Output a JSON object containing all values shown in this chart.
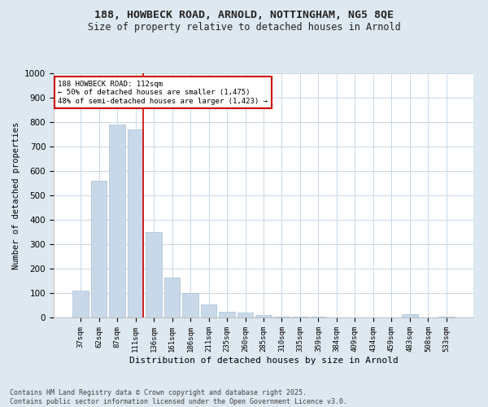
{
  "title1": "188, HOWBECK ROAD, ARNOLD, NOTTINGHAM, NG5 8QE",
  "title2": "Size of property relative to detached houses in Arnold",
  "xlabel": "Distribution of detached houses by size in Arnold",
  "ylabel": "Number of detached properties",
  "categories": [
    "37sqm",
    "62sqm",
    "87sqm",
    "111sqm",
    "136sqm",
    "161sqm",
    "186sqm",
    "211sqm",
    "235sqm",
    "260sqm",
    "285sqm",
    "310sqm",
    "335sqm",
    "359sqm",
    "384sqm",
    "409sqm",
    "434sqm",
    "459sqm",
    "483sqm",
    "508sqm",
    "533sqm"
  ],
  "values": [
    110,
    560,
    790,
    770,
    350,
    165,
    100,
    55,
    25,
    20,
    10,
    5,
    5,
    2,
    0,
    0,
    0,
    0,
    15,
    0,
    5
  ],
  "bar_color": "#c8d8e8",
  "bar_edge_color": "#a8c0d8",
  "vline_x_index": 3.42,
  "vline_color": "#cc0000",
  "annotation_text": "188 HOWBECK ROAD: 112sqm\n← 50% of detached houses are smaller (1,475)\n48% of semi-detached houses are larger (1,423) →",
  "annotation_box_color": "#ffffff",
  "annotation_box_edge": "#cc0000",
  "bg_color": "#dde8f0",
  "plot_bg_color": "#ffffff",
  "grid_color": "#c8d8e8",
  "footer": "Contains HM Land Registry data © Crown copyright and database right 2025.\nContains public sector information licensed under the Open Government Licence v3.0.",
  "ylim": [
    0,
    1000
  ],
  "yticks": [
    0,
    100,
    200,
    300,
    400,
    500,
    600,
    700,
    800,
    900,
    1000
  ]
}
